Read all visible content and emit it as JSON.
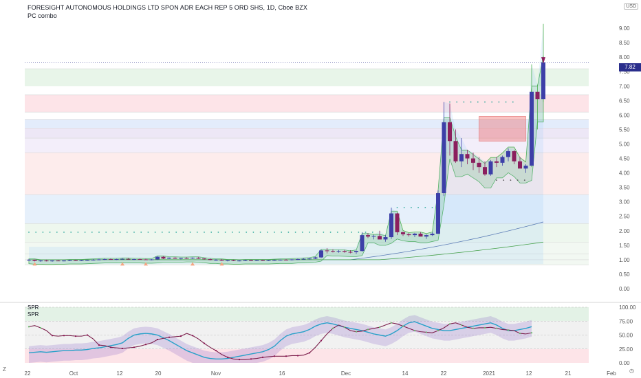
{
  "header": {
    "title": "FORESIGHT AUTONOMOUS HOLDINGS LTD SPON ADR EACH REP 5 ORD SHS, 1D, Cboe BZX",
    "indicator": "PC combo",
    "currency": "USD",
    "last_price": "7.82"
  },
  "subpanel": {
    "label1": "SPR",
    "label2": "SPR"
  },
  "bottom": {
    "left_icon": "Z",
    "right_icon": "clock-icon"
  },
  "colors": {
    "bull": "#3d3fa8",
    "bear": "#8b1f5e",
    "neutral": "#777777",
    "band_green": "#4caf50",
    "band_blue": "#90caf9",
    "band_red": "#ef9a9a",
    "accent": "#2a2e8c"
  },
  "chart_data": [
    {
      "type": "candlestick",
      "title": "FORESIGHT AUTONOMOUS HOLDINGS LTD SPON ADR EACH REP 5 ORD SHS, 1D, Cboe BZX",
      "ylim": [
        0,
        9.5
      ],
      "yticks": [
        "0.00",
        "0.50",
        "1.00",
        "1.50",
        "2.00",
        "2.50",
        "3.00",
        "3.50",
        "4.00",
        "4.50",
        "5.00",
        "5.50",
        "6.00",
        "6.50",
        "7.00",
        "7.50",
        "8.00",
        "8.50",
        "9.00"
      ],
      "xticks": [
        "22",
        "Oct",
        "12",
        "20",
        "Nov",
        "16",
        "Dec",
        "14",
        "22",
        "2021",
        "12",
        "21",
        "Feb"
      ],
      "ohlc": [
        [
          0.98,
          1.02,
          0.95,
          1.0
        ],
        [
          1.0,
          1.01,
          0.94,
          0.96
        ],
        [
          0.96,
          0.99,
          0.93,
          0.97
        ],
        [
          0.97,
          1.0,
          0.94,
          0.95
        ],
        [
          0.95,
          0.98,
          0.93,
          0.97
        ],
        [
          0.97,
          0.99,
          0.95,
          0.96
        ],
        [
          0.96,
          0.98,
          0.94,
          0.97
        ],
        [
          0.97,
          1.0,
          0.95,
          0.98
        ],
        [
          0.98,
          1.0,
          0.96,
          0.97
        ],
        [
          0.97,
          0.99,
          0.95,
          0.98
        ],
        [
          0.98,
          1.0,
          0.96,
          0.99
        ],
        [
          0.99,
          1.02,
          0.97,
          1.0
        ],
        [
          1.0,
          1.03,
          0.98,
          1.01
        ],
        [
          1.01,
          1.04,
          0.99,
          1.02
        ],
        [
          1.02,
          1.04,
          1.0,
          1.01
        ],
        [
          1.01,
          1.03,
          0.99,
          1.02
        ],
        [
          1.02,
          1.05,
          1.0,
          1.03
        ],
        [
          1.03,
          1.05,
          1.0,
          1.01
        ],
        [
          1.01,
          1.03,
          0.99,
          1.02
        ],
        [
          1.02,
          1.04,
          1.0,
          1.01
        ],
        [
          1.01,
          1.03,
          0.99,
          1.0
        ],
        [
          1.0,
          1.02,
          0.98,
          1.01
        ],
        [
          1.01,
          1.12,
          0.99,
          1.1
        ],
        [
          1.1,
          1.12,
          1.02,
          1.04
        ],
        [
          1.04,
          1.08,
          1.02,
          1.07
        ],
        [
          1.07,
          1.09,
          1.03,
          1.04
        ],
        [
          1.04,
          1.07,
          1.01,
          1.06
        ],
        [
          1.06,
          1.08,
          1.03,
          1.05
        ],
        [
          1.05,
          1.08,
          1.02,
          1.07
        ],
        [
          1.07,
          1.09,
          1.03,
          1.04
        ],
        [
          1.04,
          1.06,
          1.0,
          1.02
        ],
        [
          1.02,
          1.04,
          0.98,
          0.99
        ],
        [
          0.99,
          1.02,
          0.96,
          1.0
        ],
        [
          1.0,
          1.02,
          0.96,
          0.97
        ],
        [
          0.97,
          1.0,
          0.94,
          0.98
        ],
        [
          0.98,
          1.0,
          0.95,
          0.96
        ],
        [
          0.96,
          0.99,
          0.94,
          0.97
        ],
        [
          0.97,
          1.0,
          0.95,
          0.98
        ],
        [
          0.98,
          1.0,
          0.96,
          0.97
        ],
        [
          0.97,
          0.99,
          0.95,
          0.98
        ],
        [
          0.98,
          1.0,
          0.96,
          0.97
        ],
        [
          0.97,
          0.99,
          0.95,
          0.98
        ],
        [
          0.98,
          1.01,
          0.96,
          0.99
        ],
        [
          0.99,
          1.01,
          0.97,
          1.0
        ],
        [
          1.0,
          1.02,
          0.98,
          0.99
        ],
        [
          0.99,
          1.02,
          0.97,
          1.01
        ],
        [
          1.01,
          1.04,
          0.99,
          1.02
        ],
        [
          1.02,
          1.05,
          1.0,
          1.03
        ],
        [
          1.03,
          1.06,
          1.01,
          1.04
        ],
        [
          1.04,
          1.1,
          1.02,
          1.08
        ],
        [
          1.08,
          1.35,
          1.06,
          1.32
        ],
        [
          1.32,
          1.4,
          1.22,
          1.3
        ],
        [
          1.3,
          1.36,
          1.25,
          1.28
        ],
        [
          1.28,
          1.34,
          1.24,
          1.3
        ],
        [
          1.3,
          1.34,
          1.24,
          1.27
        ],
        [
          1.27,
          1.33,
          1.22,
          1.26
        ],
        [
          1.26,
          1.32,
          1.2,
          1.3
        ],
        [
          1.3,
          1.95,
          1.28,
          1.85
        ],
        [
          1.85,
          1.92,
          1.75,
          1.8
        ],
        [
          1.8,
          1.86,
          1.7,
          1.82
        ],
        [
          1.82,
          2.0,
          1.78,
          1.7
        ],
        [
          1.7,
          1.85,
          1.62,
          1.78
        ],
        [
          1.78,
          2.8,
          1.72,
          2.6
        ],
        [
          2.6,
          2.62,
          1.85,
          1.95
        ],
        [
          1.95,
          1.97,
          1.82,
          1.88
        ],
        [
          1.88,
          1.92,
          1.8,
          1.85
        ],
        [
          1.85,
          1.93,
          1.78,
          1.9
        ],
        [
          1.9,
          1.95,
          1.82,
          1.8
        ],
        [
          1.8,
          1.88,
          1.72,
          1.85
        ],
        [
          1.85,
          1.95,
          1.82,
          1.9
        ],
        [
          1.9,
          3.4,
          1.88,
          3.3
        ],
        [
          3.3,
          6.45,
          3.2,
          5.75
        ],
        [
          5.75,
          6.4,
          4.6,
          5.1
        ],
        [
          5.1,
          5.5,
          4.35,
          4.4
        ],
        [
          4.4,
          5.2,
          4.2,
          4.65
        ],
        [
          4.65,
          4.8,
          4.3,
          4.5
        ],
        [
          4.5,
          4.7,
          4.1,
          4.35
        ],
        [
          4.35,
          4.55,
          4.0,
          4.2
        ],
        [
          4.2,
          4.4,
          3.9,
          3.95
        ],
        [
          3.95,
          4.45,
          3.9,
          4.4
        ],
        [
          4.4,
          4.55,
          4.2,
          4.35
        ],
        [
          4.35,
          4.6,
          4.25,
          4.55
        ],
        [
          4.55,
          4.85,
          4.4,
          4.75
        ],
        [
          4.75,
          4.8,
          4.3,
          4.4
        ],
        [
          4.4,
          4.55,
          4.2,
          4.15
        ],
        [
          4.15,
          4.3,
          4.0,
          4.25
        ],
        [
          4.25,
          7.75,
          4.2,
          6.8
        ],
        [
          6.8,
          7.05,
          5.5,
          6.55
        ],
        [
          6.55,
          9.15,
          6.45,
          7.82
        ]
      ]
    },
    {
      "type": "line",
      "title": "SPR",
      "ylim": [
        0,
        100
      ],
      "yticks": [
        "0.00",
        "25.00",
        "50.00",
        "75.00",
        "100.00"
      ],
      "series": [
        {
          "values": [
            65,
            67,
            63,
            58,
            49,
            48,
            49,
            49,
            48,
            48,
            50,
            43,
            32,
            31,
            28,
            27,
            26,
            27,
            28,
            30,
            33,
            36,
            42,
            44,
            46,
            47,
            48,
            53,
            49,
            43,
            35,
            28,
            22,
            15,
            10,
            7,
            6,
            6,
            7,
            8,
            10,
            11,
            12,
            12,
            12,
            13,
            13,
            14,
            18,
            28,
            40,
            52,
            62,
            68,
            64,
            58,
            56,
            57,
            60,
            62,
            64,
            68,
            72,
            70,
            66,
            62,
            58,
            56,
            55,
            54,
            58,
            63,
            70,
            72,
            68,
            64,
            62,
            63,
            63,
            64,
            62,
            60,
            59,
            58,
            53,
            52,
            54
          ]
        },
        {
          "values": [
            18,
            19,
            20,
            19,
            20,
            21,
            22,
            22,
            23,
            23,
            24,
            26,
            27,
            29,
            31,
            33,
            36,
            44,
            50,
            52,
            53,
            52,
            50,
            45,
            40,
            34,
            28,
            22,
            18,
            14,
            10,
            8,
            7,
            7,
            8,
            10,
            12,
            14,
            16,
            18,
            20,
            24,
            30,
            40,
            48,
            52,
            54,
            56,
            60,
            66,
            70,
            72,
            70,
            67,
            64,
            62,
            60,
            58,
            55,
            52,
            50,
            48,
            52,
            58,
            66,
            72,
            74,
            70,
            66,
            62,
            60,
            58,
            58,
            60,
            62,
            64,
            66,
            68,
            70,
            72,
            68,
            62,
            58,
            58,
            60,
            62,
            65
          ]
        }
      ]
    }
  ]
}
